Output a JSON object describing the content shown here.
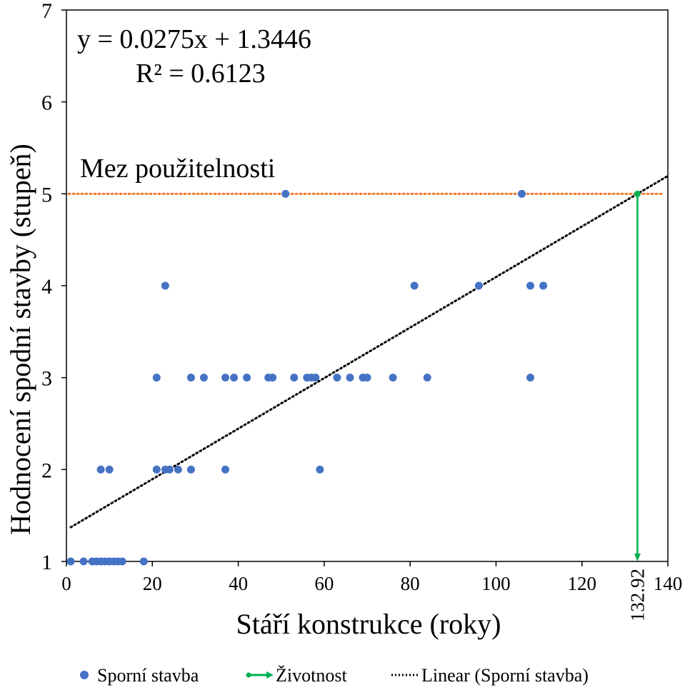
{
  "chart_data": {
    "type": "scatter",
    "xlabel": "Stáří konstrukce (roky)",
    "ylabel": "Hodnocení spodní stavby (stupeň)",
    "xlim": [
      0,
      140
    ],
    "ylim": [
      1,
      7
    ],
    "x_ticks": [
      "0",
      "20",
      "40",
      "60",
      "80",
      "100",
      "120",
      "140"
    ],
    "y_ticks": [
      "1",
      "2",
      "3",
      "4",
      "5",
      "6",
      "7"
    ],
    "grid": false,
    "legend_position": "bottom",
    "series": [
      {
        "name": "Sporní stavba",
        "color": "#4472C4",
        "points": [
          [
            1,
            1
          ],
          [
            4,
            1
          ],
          [
            6,
            1
          ],
          [
            7,
            1
          ],
          [
            8,
            1
          ],
          [
            9,
            1
          ],
          [
            10,
            1
          ],
          [
            11,
            1
          ],
          [
            12,
            1
          ],
          [
            13,
            1
          ],
          [
            18,
            1
          ],
          [
            8,
            2
          ],
          [
            10,
            2
          ],
          [
            21,
            2
          ],
          [
            23,
            2
          ],
          [
            24,
            2
          ],
          [
            26,
            2
          ],
          [
            29,
            2
          ],
          [
            37,
            2
          ],
          [
            59,
            2
          ],
          [
            21,
            3
          ],
          [
            29,
            3
          ],
          [
            32,
            3
          ],
          [
            37,
            3
          ],
          [
            39,
            3
          ],
          [
            42,
            3
          ],
          [
            47,
            3
          ],
          [
            48,
            3
          ],
          [
            53,
            3
          ],
          [
            56,
            3
          ],
          [
            57,
            3
          ],
          [
            58,
            3
          ],
          [
            63,
            3
          ],
          [
            66,
            3
          ],
          [
            69,
            3
          ],
          [
            70,
            3
          ],
          [
            76,
            3
          ],
          [
            84,
            3
          ],
          [
            108,
            3
          ],
          [
            23,
            4
          ],
          [
            81,
            4
          ],
          [
            96,
            4
          ],
          [
            108,
            4
          ],
          [
            111,
            4
          ],
          [
            51,
            5
          ],
          [
            106,
            5
          ]
        ]
      }
    ],
    "trendline": {
      "name": "Linear (Sporní stavba)",
      "color": "#000000",
      "slope": 0.0275,
      "intercept": 1.3446,
      "x_range": [
        1,
        140
      ],
      "equation_label": "y = 0.0275x + 1.3446",
      "r2_label": "R² = 0.6123"
    },
    "limit_line": {
      "label": "Mez použitelnosti",
      "y": 5,
      "color": "#ED7D31"
    },
    "lifetime": {
      "name": "Životnost",
      "x": 132.92,
      "x_label": "132.92",
      "color": "#00B050"
    }
  }
}
